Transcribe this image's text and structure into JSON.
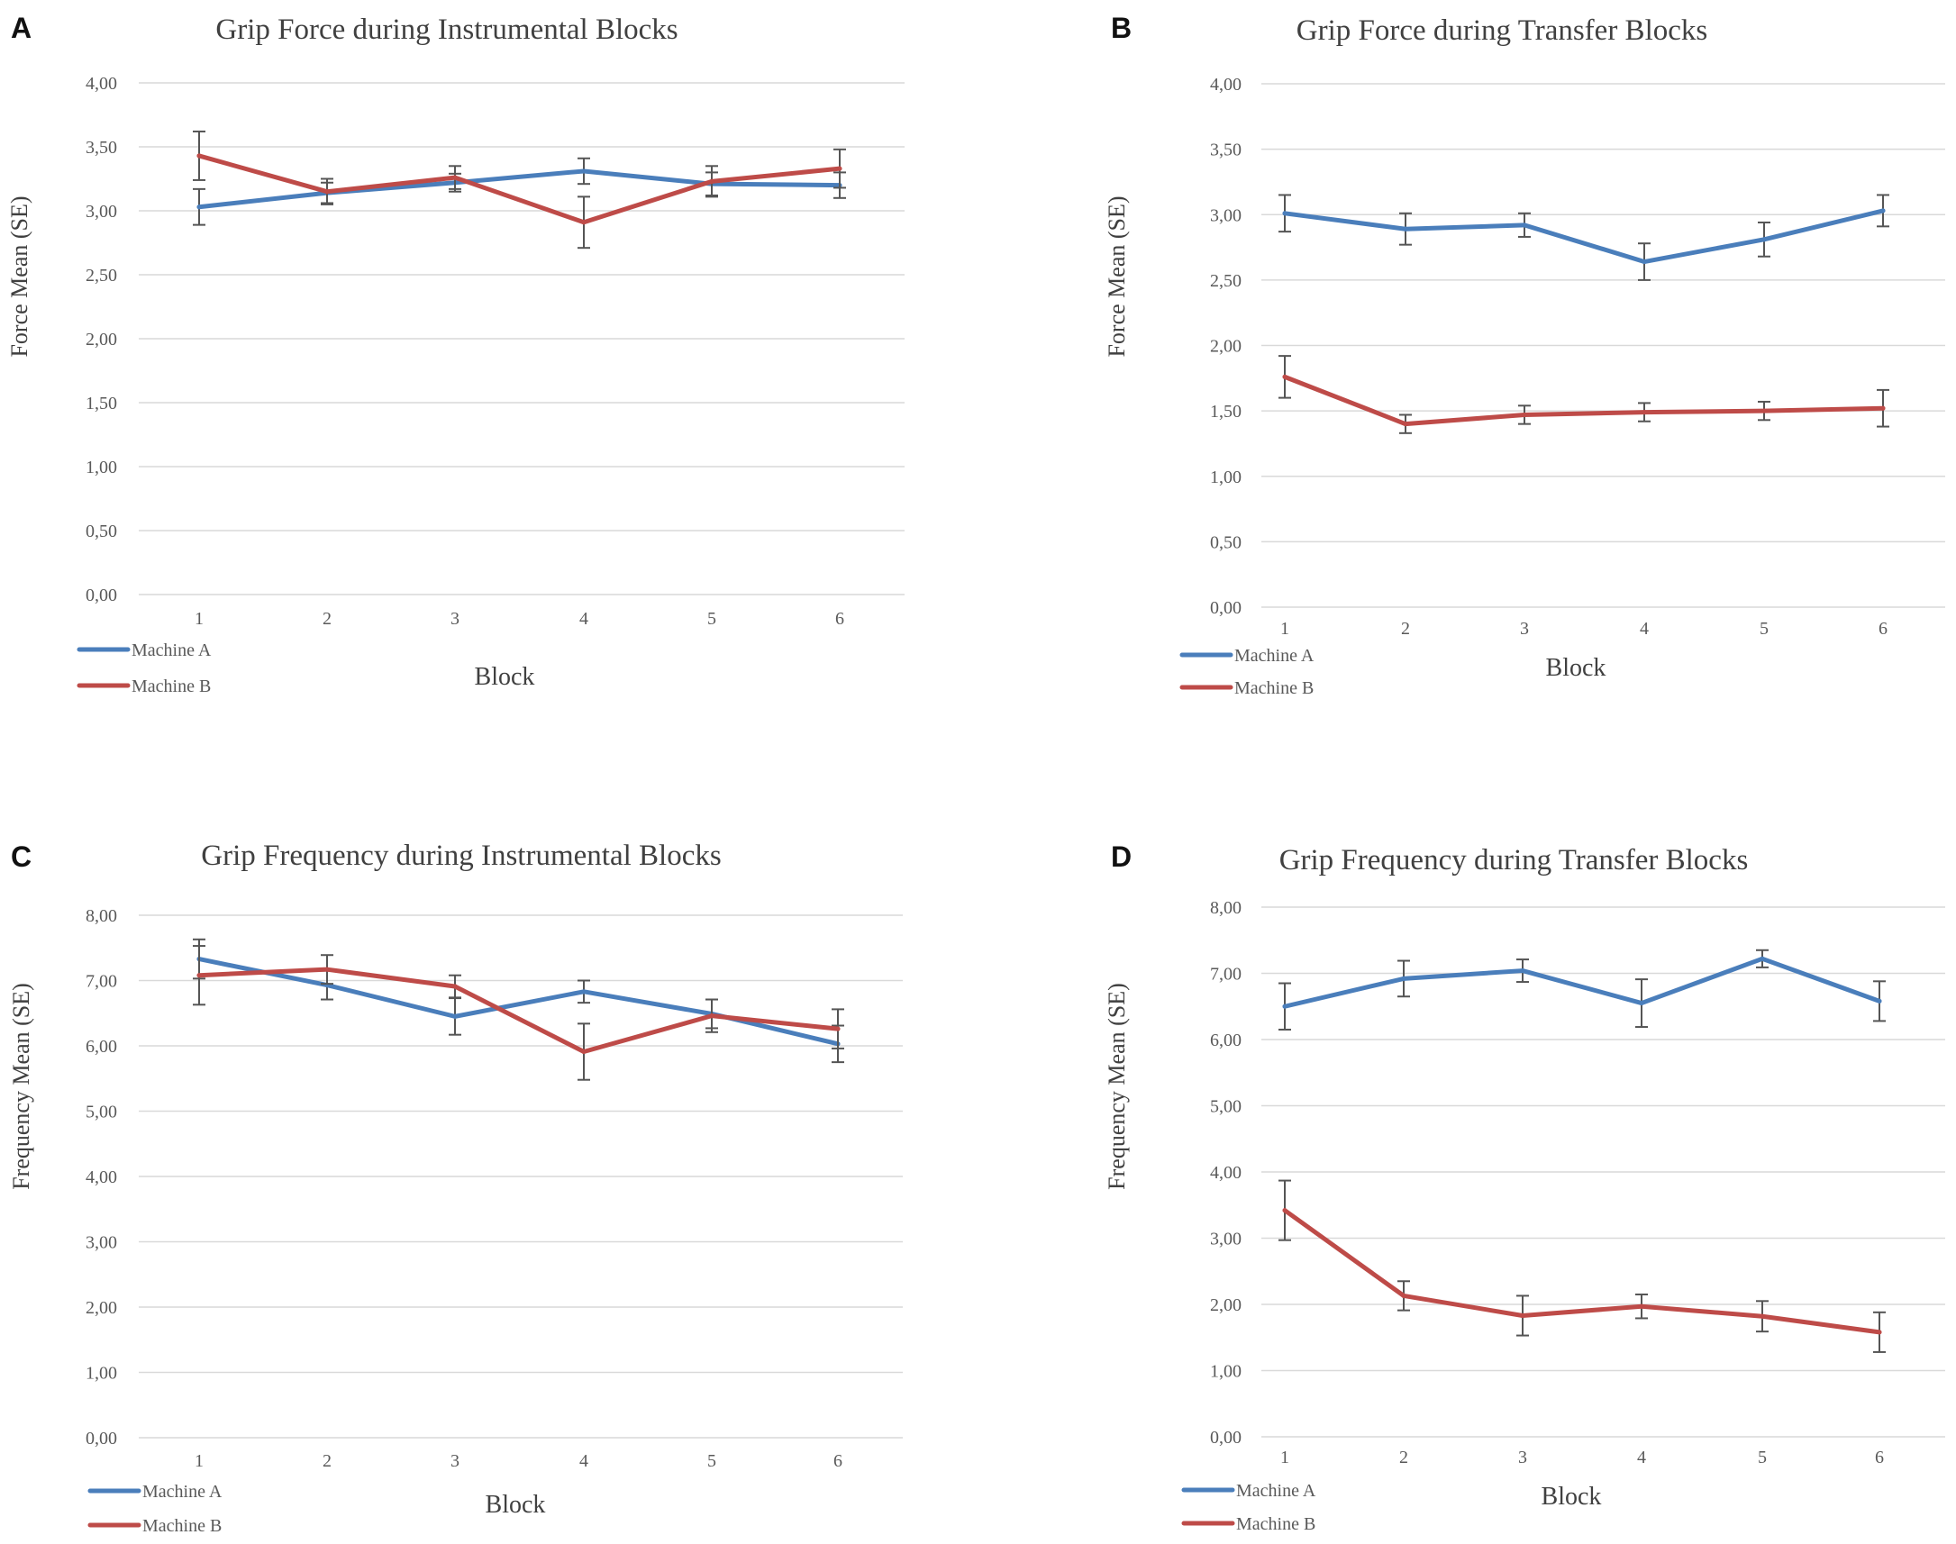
{
  "colors": {
    "machine_a": "#4a7ebb",
    "machine_b": "#be4b48"
  },
  "chart_data": [
    {
      "panel": "A",
      "type": "line",
      "title": "Grip Force during Instrumental Blocks",
      "xlabel": "Block",
      "ylabel": "Force Mean (SE)",
      "categories": [
        "1",
        "2",
        "3",
        "4",
        "5",
        "6"
      ],
      "ylim": [
        0,
        4
      ],
      "yticks": [
        "0,00",
        "0,50",
        "1,00",
        "1,50",
        "2,00",
        "2,50",
        "3,00",
        "3,50",
        "4,00"
      ],
      "grid": true,
      "legend_position": "bottom-left",
      "series": [
        {
          "name": "Machine A",
          "values": [
            3.03,
            3.14,
            3.22,
            3.31,
            3.21,
            3.2
          ],
          "errors": [
            0.14,
            0.08,
            0.07,
            0.1,
            0.09,
            0.1
          ]
        },
        {
          "name": "Machine B",
          "values": [
            3.43,
            3.15,
            3.26,
            2.91,
            3.23,
            3.33
          ],
          "errors": [
            0.19,
            0.1,
            0.09,
            0.2,
            0.12,
            0.15
          ]
        }
      ]
    },
    {
      "panel": "B",
      "type": "line",
      "title": "Grip Force during Transfer Blocks",
      "xlabel": "Block",
      "ylabel": "Force Mean (SE)",
      "categories": [
        "1",
        "2",
        "3",
        "4",
        "5",
        "6"
      ],
      "ylim": [
        0,
        4
      ],
      "yticks": [
        "0,00",
        "0,50",
        "1,00",
        "1,50",
        "2,00",
        "2,50",
        "3,00",
        "3,50",
        "4,00"
      ],
      "grid": true,
      "legend_position": "bottom-left",
      "series": [
        {
          "name": "Machine A",
          "values": [
            3.01,
            2.89,
            2.92,
            2.64,
            2.81,
            3.03
          ],
          "errors": [
            0.14,
            0.12,
            0.09,
            0.14,
            0.13,
            0.12
          ]
        },
        {
          "name": "Machine B",
          "values": [
            1.76,
            1.4,
            1.47,
            1.49,
            1.5,
            1.52
          ],
          "errors": [
            0.16,
            0.07,
            0.07,
            0.07,
            0.07,
            0.14
          ]
        }
      ]
    },
    {
      "panel": "C",
      "type": "line",
      "title": "Grip Frequency during Instrumental Blocks",
      "xlabel": "Block",
      "ylabel": "Frequency Mean (SE)",
      "categories": [
        "1",
        "2",
        "3",
        "4",
        "5",
        "6"
      ],
      "ylim": [
        0,
        8
      ],
      "yticks": [
        "0,00",
        "1,00",
        "2,00",
        "3,00",
        "4,00",
        "5,00",
        "6,00",
        "7,00",
        "8,00"
      ],
      "grid": true,
      "legend_position": "bottom-left",
      "series": [
        {
          "name": "Machine A",
          "values": [
            7.33,
            6.93,
            6.45,
            6.83,
            6.49,
            6.03
          ],
          "errors": [
            0.3,
            0.22,
            0.28,
            0.17,
            0.22,
            0.28
          ]
        },
        {
          "name": "Machine B",
          "values": [
            7.08,
            7.17,
            6.91,
            5.91,
            6.46,
            6.26
          ],
          "errors": [
            0.45,
            0.22,
            0.17,
            0.43,
            0.25,
            0.3
          ]
        }
      ]
    },
    {
      "panel": "D",
      "type": "line",
      "title": "Grip Frequency during Transfer Blocks",
      "xlabel": "Block",
      "ylabel": "Frequency Mean (SE)",
      "categories": [
        "1",
        "2",
        "3",
        "4",
        "5",
        "6"
      ],
      "ylim": [
        0,
        8
      ],
      "yticks": [
        "0,00",
        "1,00",
        "2,00",
        "3,00",
        "4,00",
        "5,00",
        "6,00",
        "7,00",
        "8,00"
      ],
      "grid": true,
      "legend_position": "bottom-left",
      "series": [
        {
          "name": "Machine A",
          "values": [
            6.5,
            6.92,
            7.04,
            6.55,
            7.22,
            6.58
          ],
          "errors": [
            0.35,
            0.27,
            0.17,
            0.36,
            0.13,
            0.3
          ]
        },
        {
          "name": "Machine B",
          "values": [
            3.42,
            2.13,
            1.83,
            1.97,
            1.82,
            1.58
          ],
          "errors": [
            0.45,
            0.22,
            0.3,
            0.18,
            0.23,
            0.3
          ]
        }
      ]
    }
  ]
}
